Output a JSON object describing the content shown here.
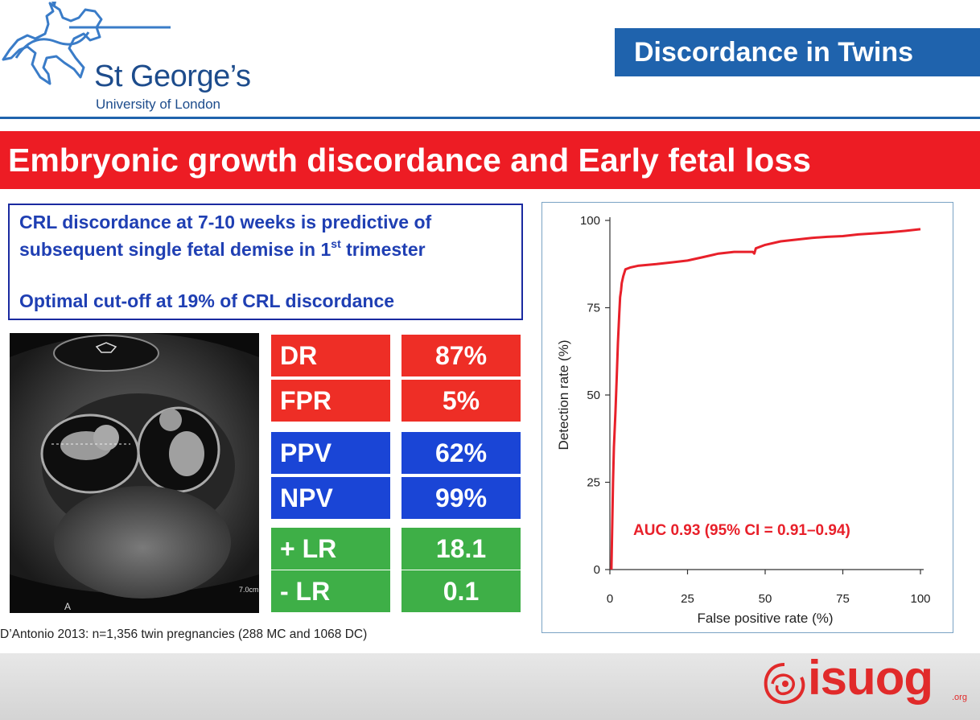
{
  "header": {
    "logo_name": "St George’s",
    "logo_sub": "University of London",
    "section_title": "Discordance in Twins"
  },
  "slide_title": "Embryonic growth discordance and Early fetal loss",
  "findings": {
    "line1": "CRL discordance at 7-10 weeks is predictive of",
    "line2_pre": "subsequent single fetal demise in 1",
    "line2_sup": "st",
    "line2_post": " trimester",
    "line3": "Optimal cut-off at 19% of CRL discordance"
  },
  "ultrasound": {
    "scale_label": "7.0cm",
    "marker": "A"
  },
  "stats": [
    {
      "label": "DR",
      "value": "87%",
      "color": "#ee2e26"
    },
    {
      "label": "FPR",
      "value": "5%",
      "color": "#ee2e26"
    },
    {
      "label": "PPV",
      "value": "62%",
      "color": "#1a45d6"
    },
    {
      "label": "NPV",
      "value": "99%",
      "color": "#1a45d6"
    },
    {
      "label": "+ LR",
      "value": "18.1",
      "color": "#3eaf47"
    },
    {
      "label": "- LR",
      "value": "0.1",
      "color": "#3eaf47"
    }
  ],
  "source_note": "D’Antonio 2013: n=1,356 twin pregnancies (288 MC and 1068 DC)",
  "chart_data": {
    "type": "line",
    "xlabel": "False positive rate (%)",
    "ylabel": "Detection rate (%)",
    "xlim": [
      0,
      100
    ],
    "ylim": [
      0,
      100
    ],
    "xticks": [
      "0",
      "25",
      "50",
      "75",
      "100"
    ],
    "yticks": [
      "0",
      "25",
      "50",
      "75",
      "100"
    ],
    "annotation": "AUC 0.93 (95% CI = 0.91–0.94)",
    "grid": false,
    "line_color": "#e8202a",
    "series": [
      {
        "x": [
          0.5,
          0.6,
          0.8,
          1.0,
          1.3,
          1.8,
          2.2,
          2.6,
          3.0,
          3.3,
          3.6,
          3.8,
          4.3,
          5.0,
          6.5,
          9,
          15,
          20,
          25,
          30,
          35,
          40,
          46,
          46.5,
          47,
          50,
          55,
          60,
          65,
          70,
          75,
          80,
          85,
          90,
          95,
          100
        ],
        "y": [
          0,
          5,
          15,
          25,
          35,
          45,
          55,
          65,
          73,
          78,
          80,
          82,
          84,
          86,
          86.5,
          87,
          87.5,
          88,
          88.5,
          89.5,
          90.5,
          91,
          91,
          90.5,
          92,
          93,
          94,
          94.5,
          95,
          95.3,
          95.5,
          96,
          96.3,
          96.6,
          97,
          97.5
        ]
      }
    ]
  },
  "footer": {
    "brand": "isuog",
    "brand_suffix": ".org"
  }
}
